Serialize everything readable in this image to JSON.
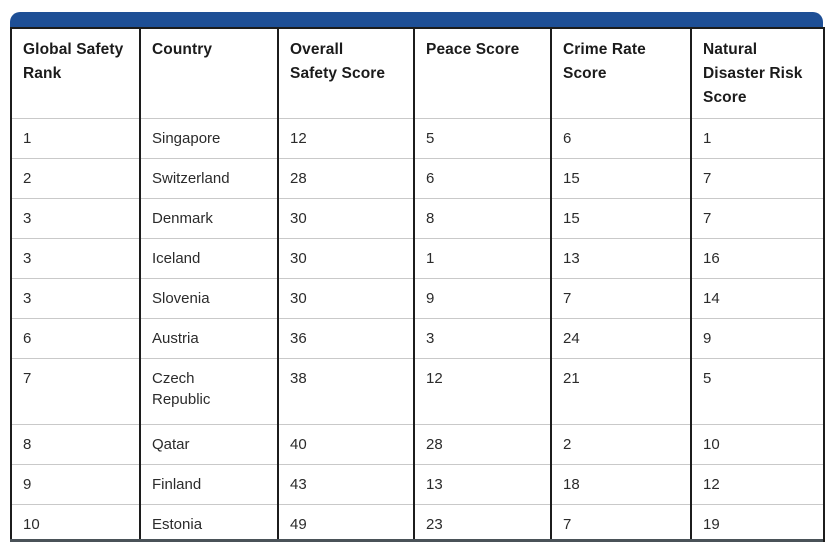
{
  "theme": {
    "accent_blue": "#1e4f96",
    "border_dark": "#1c1c1c",
    "row_divider": "#c9c9c9"
  },
  "table": {
    "columns": [
      "Global Safety\nRank",
      "Country",
      "Overall\nSafety Score",
      "Peace Score",
      "Crime Rate\nScore",
      "Natural\nDisaster Risk\nScore"
    ],
    "rows": [
      [
        "1",
        "Singapore",
        "12",
        "5",
        "6",
        "1"
      ],
      [
        "2",
        "Switzerland",
        "28",
        "6",
        "15",
        "7"
      ],
      [
        "3",
        "Denmark",
        "30",
        "8",
        "15",
        "7"
      ],
      [
        "3",
        "Iceland",
        "30",
        "1",
        "13",
        "16"
      ],
      [
        "3",
        "Slovenia",
        "30",
        "9",
        "7",
        "14"
      ],
      [
        "6",
        "Austria",
        "36",
        "3",
        "24",
        "9"
      ],
      [
        "7",
        "Czech\nRepublic",
        "38",
        "12",
        "21",
        "5"
      ],
      [
        "8",
        "Qatar",
        "40",
        "28",
        "2",
        "10"
      ],
      [
        "9",
        "Finland",
        "43",
        "13",
        "18",
        "12"
      ],
      [
        "10",
        "Estonia",
        "49",
        "23",
        "7",
        "19"
      ]
    ]
  },
  "chart_data": {
    "type": "table",
    "columns": [
      "Global Safety Rank",
      "Country",
      "Overall Safety Score",
      "Peace Score",
      "Crime Rate Score",
      "Natural Disaster Risk Score"
    ],
    "rows": [
      [
        1,
        "Singapore",
        12,
        5,
        6,
        1
      ],
      [
        2,
        "Switzerland",
        28,
        6,
        15,
        7
      ],
      [
        3,
        "Denmark",
        30,
        8,
        15,
        7
      ],
      [
        3,
        "Iceland",
        30,
        1,
        13,
        16
      ],
      [
        3,
        "Slovenia",
        30,
        9,
        7,
        14
      ],
      [
        6,
        "Austria",
        36,
        3,
        24,
        9
      ],
      [
        7,
        "Czech Republic",
        38,
        12,
        21,
        5
      ],
      [
        8,
        "Qatar",
        40,
        28,
        2,
        10
      ],
      [
        9,
        "Finland",
        43,
        13,
        18,
        12
      ],
      [
        10,
        "Estonia",
        49,
        23,
        7,
        19
      ]
    ]
  }
}
